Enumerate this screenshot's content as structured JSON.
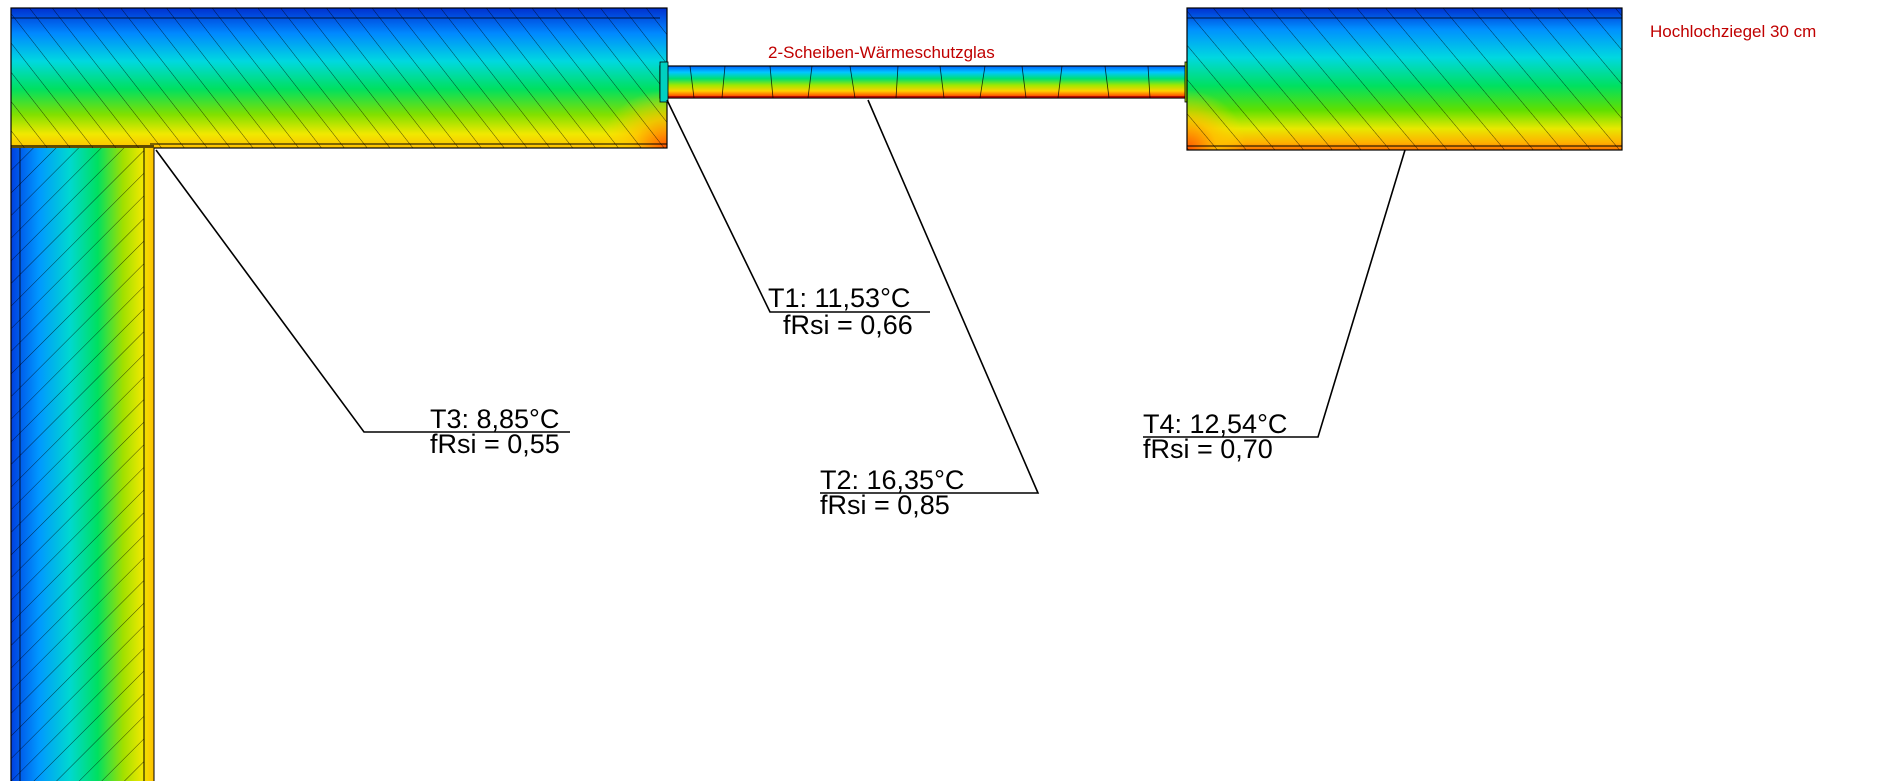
{
  "labels": {
    "glass": "2-Scheiben-Wärmeschutzglas",
    "wall": "Hochlochziegel 30 cm"
  },
  "points": [
    {
      "id": "T1",
      "temp": "T1: 11,53°C",
      "frsi": "fRsi = 0,66"
    },
    {
      "id": "T2",
      "temp": "T2: 16,35°C",
      "frsi": "fRsi = 0,85"
    },
    {
      "id": "T3",
      "temp": "T3: 8,85°C",
      "frsi": "fRsi = 0,55"
    },
    {
      "id": "T4",
      "temp": "T4: 12,54°C",
      "frsi": "fRsi = 0,70"
    }
  ],
  "colors": {
    "label_red": "#c00000",
    "gradient": [
      "#0000c8",
      "#0070ff",
      "#00d0ff",
      "#00e070",
      "#60e000",
      "#f0f000",
      "#ffb000",
      "#ff4000"
    ]
  }
}
